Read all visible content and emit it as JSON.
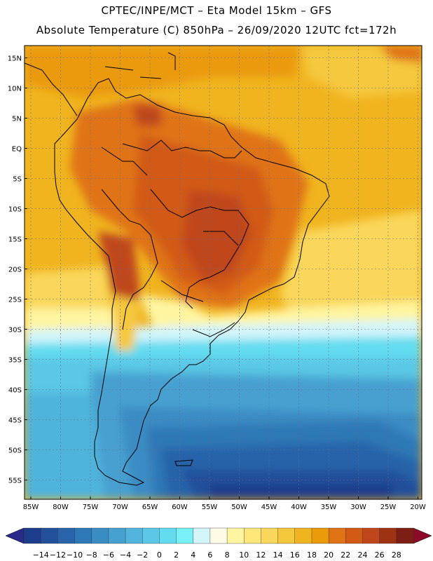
{
  "header": {
    "line1": "CPTEC/INPE/MCT –  Eta Model 15km – GFS",
    "line2": "Absolute Temperature (C) 850hPa – 26/09/2020 12UTC fct=172h"
  },
  "axes": {
    "lat_labels": [
      "15N",
      "10N",
      "5N",
      "EQ",
      "5S",
      "10S",
      "15S",
      "20S",
      "25S",
      "30S",
      "35S",
      "40S",
      "45S",
      "50S",
      "55S"
    ],
    "lon_labels": [
      "85W",
      "80W",
      "75W",
      "70W",
      "65W",
      "60W",
      "55W",
      "50W",
      "45W",
      "40W",
      "35W",
      "30W",
      "25W",
      "20W"
    ]
  },
  "colorbar": {
    "labels": [
      "-14",
      "-12",
      "-10",
      "-8",
      "-6",
      "-4",
      "-2",
      "0",
      "2",
      "4",
      "6",
      "8",
      "10",
      "12",
      "14",
      "16",
      "18",
      "20",
      "22",
      "24",
      "26",
      "28"
    ],
    "colors": [
      "#1e3c8c",
      "#23509c",
      "#2864aa",
      "#2d78b6",
      "#3a8cc4",
      "#46a0d0",
      "#50b4dc",
      "#5ac8e6",
      "#64dcf0",
      "#78f0fa",
      "#d2f5fa",
      "#fffae6",
      "#fff5a0",
      "#ffe678",
      "#fad75a",
      "#f5c83c",
      "#f0b41e",
      "#eb9a0a",
      "#e07314",
      "#d25a14",
      "#c0461e",
      "#a03214",
      "#7d1e14"
    ],
    "under_color": "#2a2a8c",
    "over_color": "#8c0a28"
  }
}
